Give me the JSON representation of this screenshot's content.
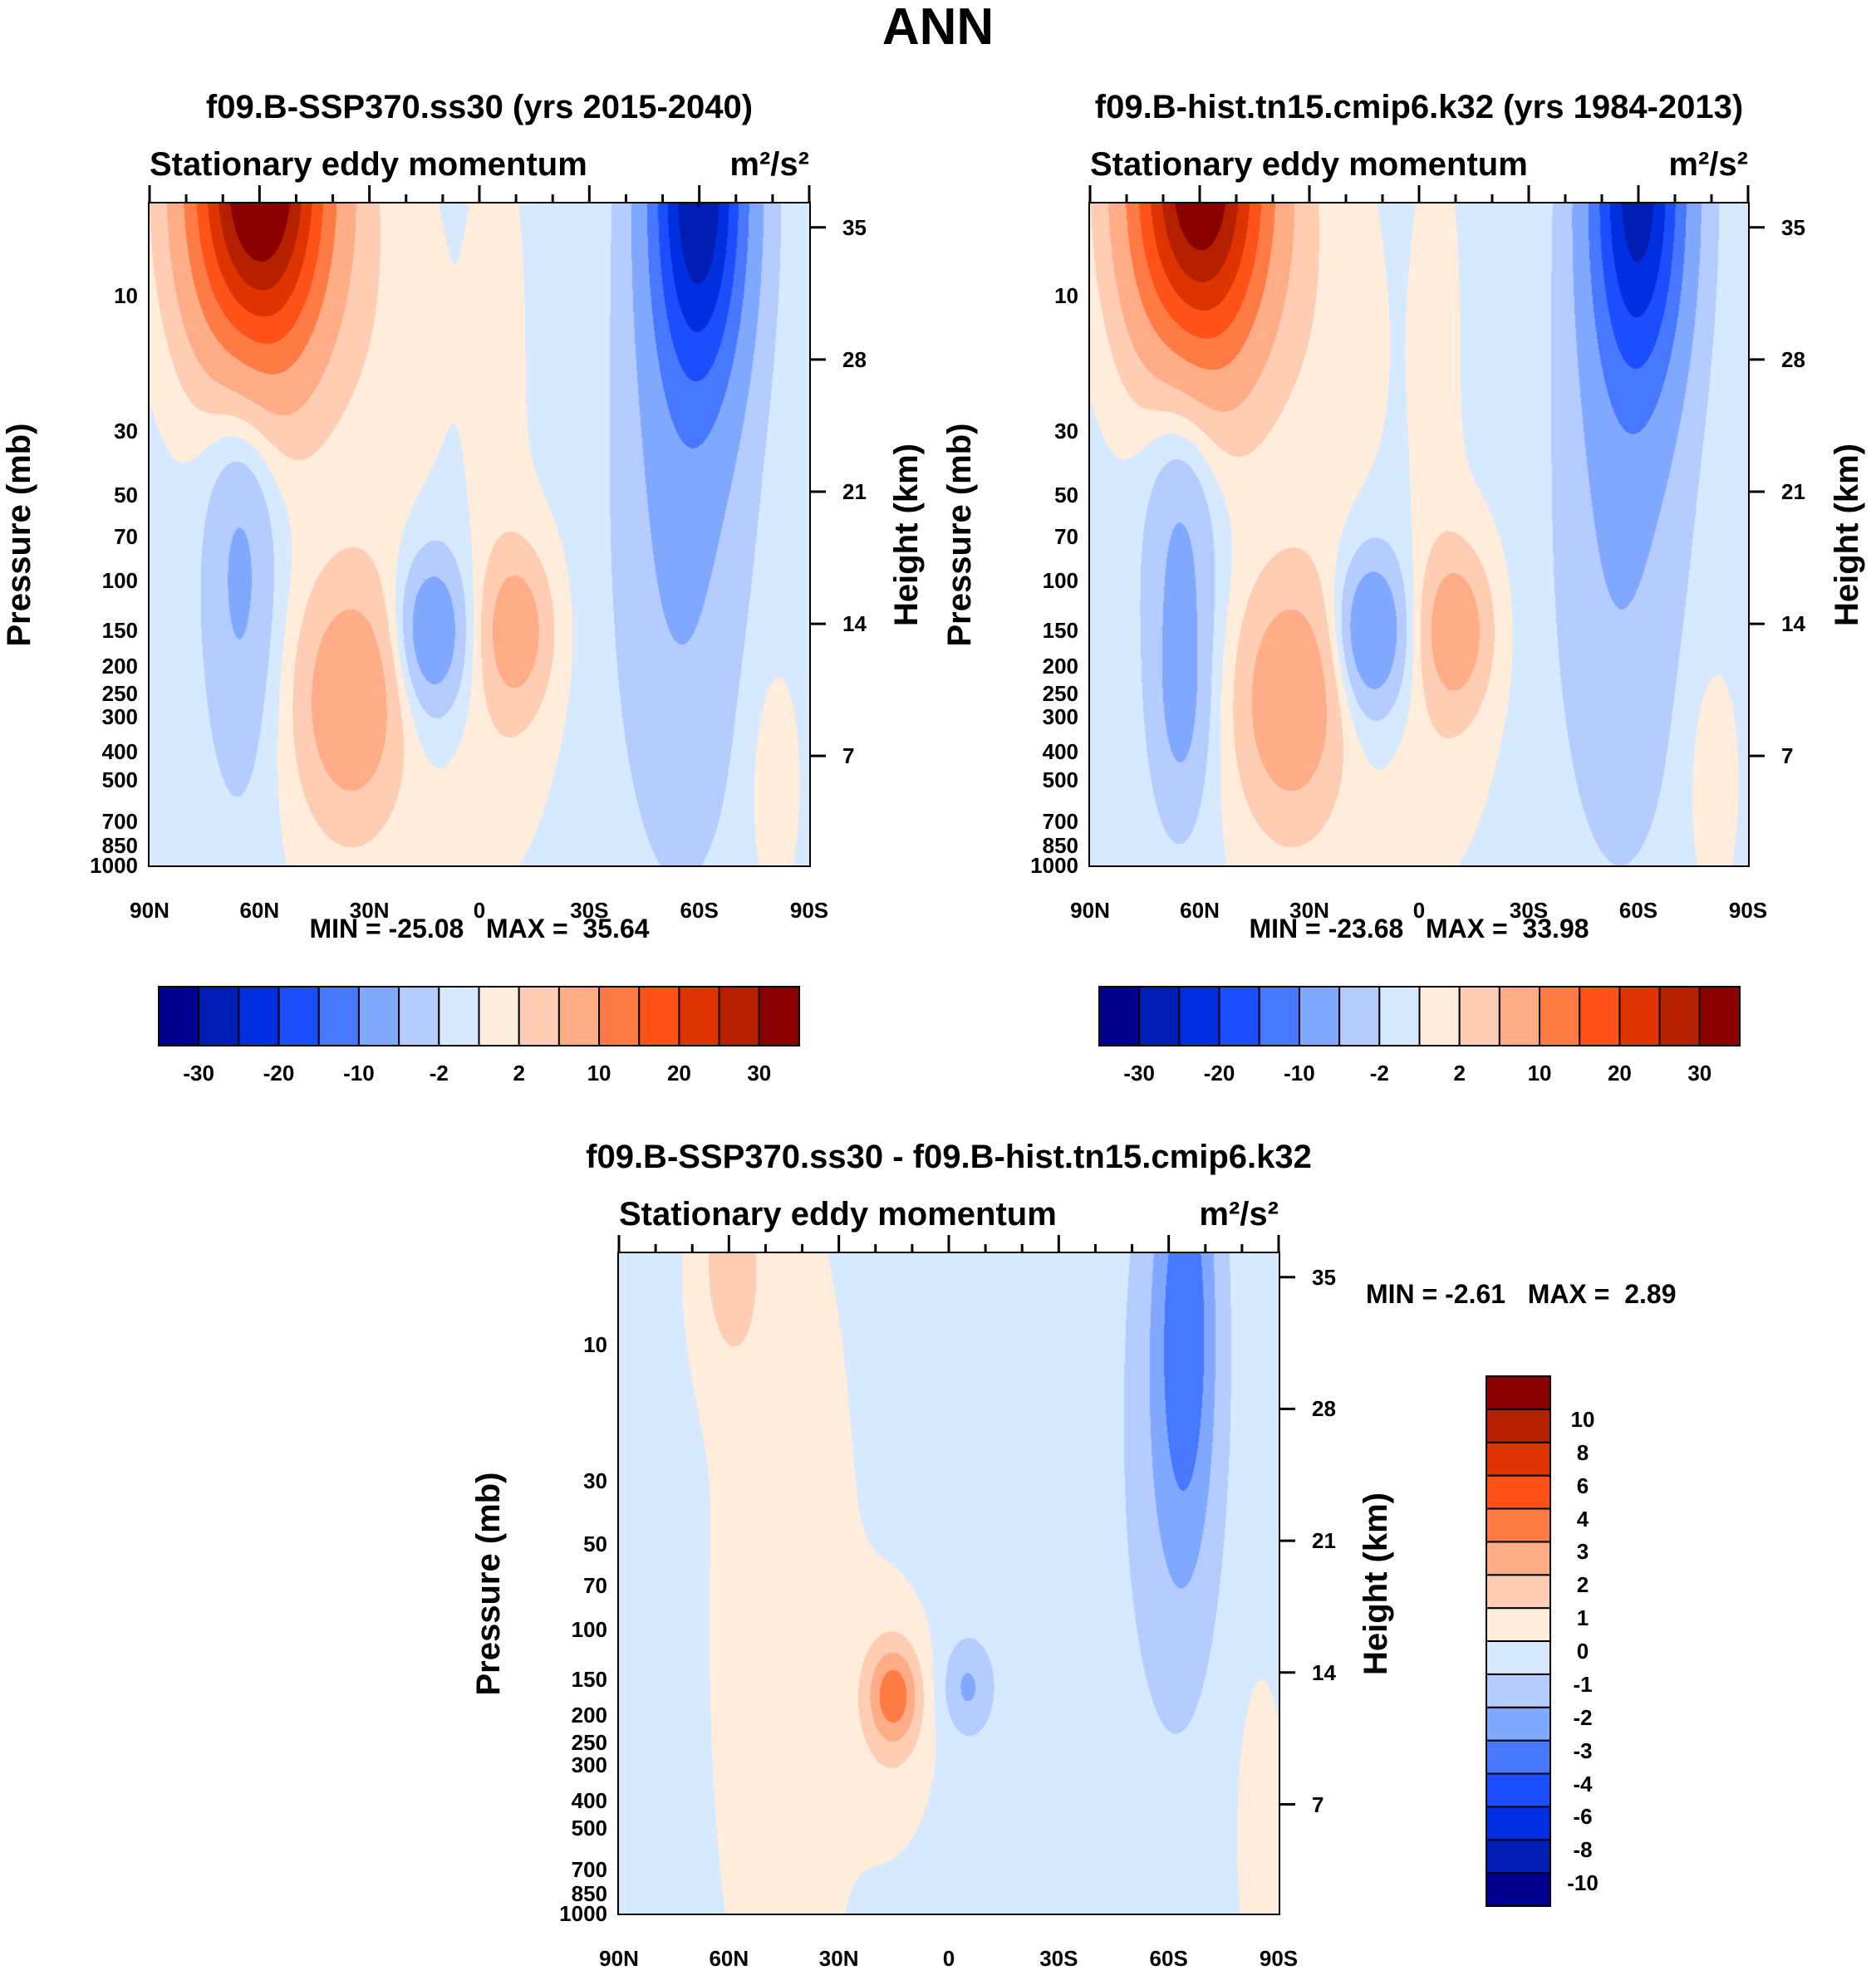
{
  "figure_title": "ANN",
  "chart_data": [
    {
      "type": "contour",
      "title": "f09.B-SSP370.ss30 (yrs 2015-2040)",
      "subtitle": "Stationary eddy momentum",
      "units": "m²/s²",
      "xlabel_ticks": [
        "90N",
        "60N",
        "30N",
        "0",
        "30S",
        "60S",
        "90S"
      ],
      "x_values": [
        90,
        60,
        30,
        0,
        -30,
        -60,
        -90
      ],
      "ylabel": "Pressure (mb)",
      "y_ticks": [
        10,
        30,
        50,
        70,
        100,
        150,
        200,
        250,
        300,
        400,
        500,
        700,
        850,
        1000
      ],
      "ylim_mb": [
        4.76,
        1000
      ],
      "y2label": "Height (km)",
      "y2_ticks": [
        35,
        28,
        21,
        14,
        7
      ],
      "min_label": "MIN =",
      "min": "-25.08",
      "max_label": "MAX =",
      "max": "35.64",
      "levels": [
        -30,
        -25,
        -20,
        -15,
        -10,
        -5,
        -2,
        0,
        2,
        5,
        10,
        15,
        20,
        25,
        30
      ],
      "colorbar_labels": [
        "-30",
        "-20",
        "-10",
        "-2",
        "2",
        "10",
        "20",
        "30"
      ],
      "base": -0.6,
      "features": [
        {
          "lat": 60,
          "p": 4,
          "amp": 38,
          "slat": 13,
          "slogp": 0.45
        },
        {
          "lat": -60,
          "p": 4,
          "amp": -28,
          "slat": 9,
          "slogp": 0.5
        },
        {
          "lat": -55,
          "p": 60,
          "amp": -5,
          "slat": 12,
          "slogp": 0.8
        },
        {
          "lat": 65,
          "p": 80,
          "amp": -5.5,
          "slat": 7,
          "slogp": 0.55
        },
        {
          "lat": 35,
          "p": 260,
          "amp": 7,
          "slat": 9,
          "slogp": 0.25
        },
        {
          "lat": 35,
          "p": 300,
          "amp": 3,
          "slat": 14,
          "slogp": 0.45
        },
        {
          "lat": 13,
          "p": 150,
          "amp": -7,
          "slat": 6,
          "slogp": 0.17
        },
        {
          "lat": 13,
          "p": 180,
          "amp": -2.5,
          "slat": 8,
          "slogp": 0.3
        },
        {
          "lat": -10,
          "p": 150,
          "amp": 6,
          "slat": 6,
          "slogp": 0.17
        },
        {
          "lat": -10,
          "p": 150,
          "amp": 2.5,
          "slat": 9,
          "slogp": 0.3
        },
        {
          "lat": 25,
          "p": 15,
          "amp": 1.5,
          "slat": 12,
          "slogp": 0.6
        },
        {
          "lat": -5,
          "p": 15,
          "amp": 1.3,
          "slat": 6,
          "slogp": 0.6
        },
        {
          "lat": 0,
          "p": 500,
          "amp": 1.3,
          "slat": 12,
          "slogp": 0.3
        },
        {
          "lat": -80,
          "p": 500,
          "amp": 2,
          "slat": 5,
          "slogp": 0.3
        }
      ]
    },
    {
      "type": "contour",
      "title": "f09.B-hist.tn15.cmip6.k32 (yrs 1984-2013)",
      "subtitle": "Stationary eddy momentum",
      "units": "m²/s²",
      "xlabel_ticks": [
        "90N",
        "60N",
        "30N",
        "0",
        "30S",
        "60S",
        "90S"
      ],
      "x_values": [
        90,
        60,
        30,
        0,
        -30,
        -60,
        -90
      ],
      "ylabel": "Pressure (mb)",
      "y_ticks": [
        10,
        30,
        50,
        70,
        100,
        150,
        200,
        250,
        300,
        400,
        500,
        700,
        850,
        1000
      ],
      "ylim_mb": [
        4.76,
        1000
      ],
      "y2label": "Height (km)",
      "y2_ticks": [
        35,
        28,
        21,
        14,
        7
      ],
      "min_label": "MIN =",
      "min": "-23.68",
      "max_label": "MAX =",
      "max": "33.98",
      "levels": [
        -30,
        -25,
        -20,
        -15,
        -10,
        -5,
        -2,
        0,
        2,
        5,
        10,
        15,
        20,
        25,
        30
      ],
      "colorbar_labels": [
        "-30",
        "-20",
        "-10",
        "-2",
        "2",
        "10",
        "20",
        "30"
      ],
      "base": -0.6,
      "features": [
        {
          "lat": 60,
          "p": 4,
          "amp": 36,
          "slat": 13,
          "slogp": 0.45
        },
        {
          "lat": -60,
          "p": 4,
          "amp": -26,
          "slat": 9,
          "slogp": 0.5
        },
        {
          "lat": -55,
          "p": 60,
          "amp": -4.5,
          "slat": 12,
          "slogp": 0.8
        },
        {
          "lat": 65,
          "p": 80,
          "amp": -5.5,
          "slat": 7,
          "slogp": 0.55
        },
        {
          "lat": 65,
          "p": 300,
          "amp": -3,
          "slat": 5,
          "slogp": 0.25
        },
        {
          "lat": 35,
          "p": 260,
          "amp": 7,
          "slat": 9,
          "slogp": 0.25
        },
        {
          "lat": 35,
          "p": 300,
          "amp": 3,
          "slat": 14,
          "slogp": 0.45
        },
        {
          "lat": 13,
          "p": 150,
          "amp": -8,
          "slat": 6,
          "slogp": 0.17
        },
        {
          "lat": 13,
          "p": 180,
          "amp": -2.5,
          "slat": 8,
          "slogp": 0.3
        },
        {
          "lat": -10,
          "p": 150,
          "amp": 6.5,
          "slat": 6,
          "slogp": 0.17
        },
        {
          "lat": -10,
          "p": 150,
          "amp": 2.5,
          "slat": 9,
          "slogp": 0.3
        },
        {
          "lat": 25,
          "p": 15,
          "amp": 1.5,
          "slat": 12,
          "slogp": 0.6
        },
        {
          "lat": -5,
          "p": 15,
          "amp": 1.3,
          "slat": 5,
          "slogp": 0.6
        },
        {
          "lat": 0,
          "p": 500,
          "amp": 1.3,
          "slat": 12,
          "slogp": 0.3
        },
        {
          "lat": -80,
          "p": 500,
          "amp": 2,
          "slat": 5,
          "slogp": 0.3
        }
      ]
    },
    {
      "type": "contour",
      "title": "f09.B-SSP370.ss30 - f09.B-hist.tn15.cmip6.k32",
      "subtitle": "Stationary eddy momentum",
      "units": "m²/s²",
      "xlabel_ticks": [
        "90N",
        "60N",
        "30N",
        "0",
        "30S",
        "60S",
        "90S"
      ],
      "x_values": [
        90,
        60,
        30,
        0,
        -30,
        -60,
        -90
      ],
      "ylabel": "Pressure (mb)",
      "y_ticks": [
        10,
        30,
        50,
        70,
        100,
        150,
        200,
        250,
        300,
        400,
        500,
        700,
        850,
        1000
      ],
      "ylim_mb": [
        4.76,
        1000
      ],
      "y2label": "Height (km)",
      "y2_ticks": [
        35,
        28,
        21,
        14,
        7
      ],
      "min_label": "MIN =",
      "min": "-2.61",
      "max_label": "MAX =",
      "max": "2.89",
      "levels": [
        -10,
        -8,
        -6,
        -4,
        -3,
        -2,
        -1,
        0,
        1,
        2,
        3,
        4,
        6,
        8,
        10
      ],
      "colorbar_labels": [
        "-10",
        "-8",
        "-6",
        "-4",
        "-3",
        "-2",
        "-1",
        "0",
        "1",
        "2",
        "3",
        "4",
        "6",
        "8",
        "10"
      ],
      "base": -0.4,
      "features": [
        {
          "lat": 60,
          "p": 5,
          "amp": 1.6,
          "slat": 7,
          "slogp": 0.3
        },
        {
          "lat": 45,
          "p": 100,
          "amp": 1.0,
          "slat": 15,
          "slogp": 1.2
        },
        {
          "lat": 15,
          "p": 170,
          "amp": 2.9,
          "slat": 5,
          "slogp": 0.12
        },
        {
          "lat": 15,
          "p": 200,
          "amp": 1.2,
          "slat": 8,
          "slogp": 0.3
        },
        {
          "lat": -5,
          "p": 160,
          "amp": -1.8,
          "slat": 5,
          "slogp": 0.12
        },
        {
          "lat": -65,
          "p": 8,
          "amp": -2.6,
          "slat": 6,
          "slogp": 0.6
        },
        {
          "lat": -60,
          "p": 20,
          "amp": -1.2,
          "slat": 10,
          "slogp": 0.8
        },
        {
          "lat": -85,
          "p": 500,
          "amp": 1,
          "slat": 5,
          "slogp": 0.4
        }
      ]
    }
  ],
  "colors": [
    "#00008c",
    "#001eb4",
    "#002ee0",
    "#1c4eff",
    "#4778ff",
    "#80a8ff",
    "#b4ccff",
    "#d6e9ff",
    "#ffecdb",
    "#ffcdb4",
    "#ffac87",
    "#ff7b45",
    "#ff5219",
    "#e03400",
    "#b52100",
    "#8b0000"
  ]
}
